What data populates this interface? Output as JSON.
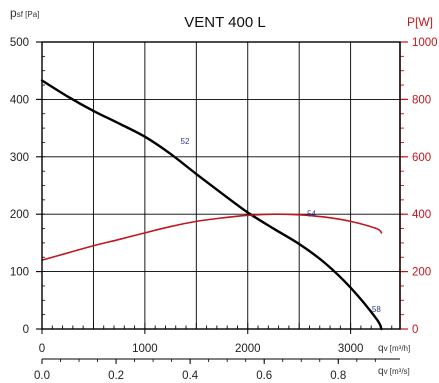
{
  "chart_data": {
    "type": "line",
    "title": "VENT 400 L",
    "y_left": {
      "label_main": "p",
      "label_sub": "sf [Pa]",
      "range": [
        0,
        500
      ],
      "ticks": [
        0,
        100,
        200,
        300,
        400,
        500
      ],
      "tick_labels": [
        "0",
        "100",
        "200",
        "300",
        "400",
        "500"
      ]
    },
    "y_right": {
      "label": "P[W]",
      "range": [
        0,
        1000
      ],
      "ticks": [
        0,
        200,
        400,
        600,
        800,
        1000
      ],
      "tick_labels": [
        "0",
        "200",
        "400",
        "600",
        "800",
        "1000"
      ],
      "color": "#c0161e"
    },
    "x_top": {
      "label_main": "q",
      "label_sub": "v [m³/h]",
      "range": [
        0,
        3300
      ],
      "ticks": [
        0,
        1000,
        2000,
        3000
      ],
      "tick_labels": [
        "0",
        "1000",
        "2000",
        "3000"
      ]
    },
    "x_bottom": {
      "label_main": "q",
      "label_sub": "v [m³/s]",
      "ticks": [
        0.0,
        0.2,
        0.4,
        0.6,
        0.8
      ],
      "tick_labels": [
        "0.0",
        "0.2",
        "0.4",
        "0.6",
        "0.8"
      ]
    },
    "grid": true,
    "series": [
      {
        "axis": "left",
        "color": "#000000",
        "x": [
          0,
          250,
          500,
          750,
          1000,
          1250,
          1500,
          1750,
          2000,
          2250,
          2500,
          2750,
          3000,
          3250,
          3300
        ],
        "values": [
          433,
          405,
          380,
          358,
          335,
          305,
          270,
          236,
          203,
          175,
          148,
          115,
          72,
          18,
          0
        ]
      },
      {
        "axis": "right",
        "color": "#c0161e",
        "x": [
          0,
          250,
          500,
          750,
          1000,
          1250,
          1500,
          1750,
          2000,
          2250,
          2500,
          2750,
          3000,
          3250,
          3300
        ],
        "values": [
          240,
          265,
          290,
          312,
          335,
          357,
          375,
          387,
          396,
          400,
          398,
          390,
          375,
          350,
          335
        ]
      }
    ],
    "annotations": [
      {
        "text": "52",
        "x": 1390,
        "y": 322
      },
      {
        "text": "54",
        "x": 2620,
        "y": 196
      },
      {
        "text": "58",
        "x": 3250,
        "y": 30
      }
    ]
  }
}
